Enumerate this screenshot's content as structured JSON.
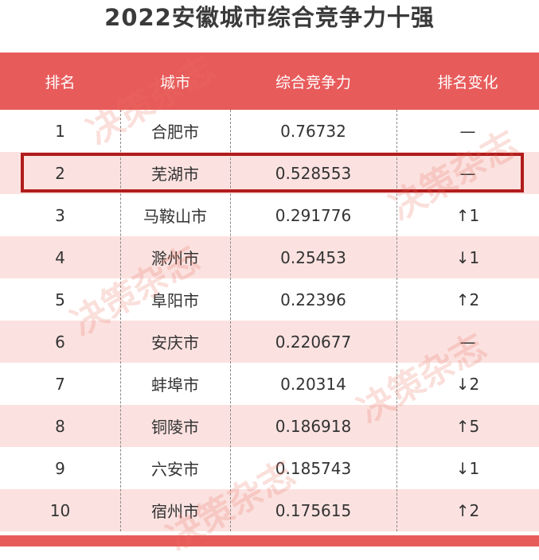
{
  "title": "2022安徽城市综合竞争力十强",
  "columns": [
    "排名",
    "城市",
    "综合竞争力",
    "排名变化"
  ],
  "rows": [
    {
      "rank": "1",
      "city": "合肥市",
      "score": "0.76732",
      "change": "—"
    },
    {
      "rank": "2",
      "city": "芜湖市",
      "score": "0.528553",
      "change": "—"
    },
    {
      "rank": "3",
      "city": "马鞍山市",
      "score": "0.291776",
      "change": "↑1"
    },
    {
      "rank": "4",
      "city": "滁州市",
      "score": "0.25453",
      "change": "↓1"
    },
    {
      "rank": "5",
      "city": "阜阳市",
      "score": "0.22396",
      "change": "↑2"
    },
    {
      "rank": "6",
      "city": "安庆市",
      "score": "0.220677",
      "change": "—"
    },
    {
      "rank": "7",
      "city": "蚌埠市",
      "score": "0.20314",
      "change": "↓2"
    },
    {
      "rank": "8",
      "city": "铜陵市",
      "score": "0.186918",
      "change": "↑5"
    },
    {
      "rank": "9",
      "city": "六安市",
      "score": "0.185743",
      "change": "↓1"
    },
    {
      "rank": "10",
      "city": "宿州市",
      "score": "0.175615",
      "change": "↑2"
    }
  ],
  "highlighted_rank": "2",
  "watermark": "决策杂志",
  "colors": {
    "header": "#e85b5b",
    "alt_row": "#fbe2e0",
    "highlight_border": "#b11c1c"
  }
}
